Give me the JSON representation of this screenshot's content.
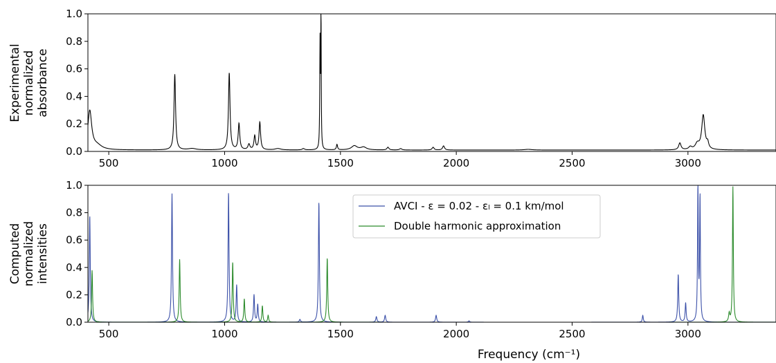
{
  "chart_data": [
    {
      "type": "line",
      "ylabel_lines": [
        "Experimental",
        "normalized",
        "absorbance"
      ],
      "xlim": [
        410,
        3380
      ],
      "ylim": [
        0,
        1.0
      ],
      "xticks": [
        500,
        1000,
        1500,
        2000,
        2500,
        3000
      ],
      "yticks": [
        "0.0",
        "0.2",
        "0.4",
        "0.6",
        "0.8",
        "1.0"
      ],
      "series": [
        {
          "color": "#000000",
          "baseline": 0.01,
          "peaks": [
            [
              418,
              0.28,
              10
            ],
            [
              450,
              0.03,
              25
            ],
            [
              785,
              0.55,
              4
            ],
            [
              860,
              0.01,
              20
            ],
            [
              1020,
              0.56,
              4
            ],
            [
              1062,
              0.19,
              4
            ],
            [
              1105,
              0.04,
              5
            ],
            [
              1130,
              0.1,
              4
            ],
            [
              1152,
              0.2,
              4
            ],
            [
              1230,
              0.01,
              15
            ],
            [
              1340,
              0.01,
              6
            ],
            [
              1412,
              0.77,
              1.5
            ],
            [
              1416,
              0.99,
              1.2
            ],
            [
              1485,
              0.04,
              3
            ],
            [
              1560,
              0.03,
              15
            ],
            [
              1600,
              0.02,
              15
            ],
            [
              1705,
              0.02,
              5
            ],
            [
              1760,
              0.01,
              6
            ],
            [
              1900,
              0.02,
              5
            ],
            [
              1945,
              0.03,
              5
            ],
            [
              2310,
              0.005,
              20
            ],
            [
              2965,
              0.05,
              6
            ],
            [
              3010,
              0.02,
              8
            ],
            [
              3040,
              0.04,
              10
            ],
            [
              3066,
              0.25,
              8
            ],
            [
              3085,
              0.04,
              5
            ]
          ]
        }
      ]
    },
    {
      "type": "line",
      "xlabel": "Frequency (cm⁻¹)",
      "ylabel_lines": [
        "Computed",
        "normalized",
        "intensities"
      ],
      "xlim": [
        410,
        3380
      ],
      "ylim": [
        0,
        1.0
      ],
      "xticks": [
        500,
        1000,
        1500,
        2000,
        2500,
        3000
      ],
      "yticks": [
        "0.0",
        "0.2",
        "0.4",
        "0.6",
        "0.8",
        "1.0"
      ],
      "legend": {
        "placement": "top-center",
        "items": [
          {
            "label": "AVCI - ε = 0.02 - εₗ = 0.1 km/mol",
            "color": "#3a4fa8"
          },
          {
            "label": "Double harmonic approximation",
            "color": "#2a8a2a"
          }
        ]
      },
      "series": [
        {
          "color": "#3a4fa8",
          "baseline": 0,
          "peaks": [
            [
              418,
              0.78,
              2.5
            ],
            [
              773,
              0.94,
              2.5
            ],
            [
              1017,
              0.95,
              2.5
            ],
            [
              1052,
              0.27,
              2.5
            ],
            [
              1127,
              0.2,
              2.5
            ],
            [
              1143,
              0.13,
              2.5
            ],
            [
              1325,
              0.02,
              3
            ],
            [
              1407,
              0.88,
              2.5
            ],
            [
              1655,
              0.04,
              3
            ],
            [
              1693,
              0.05,
              3
            ],
            [
              1913,
              0.05,
              3
            ],
            [
              2055,
              0.01,
              3
            ],
            [
              2805,
              0.05,
              2.5
            ],
            [
              2958,
              0.35,
              2.5
            ],
            [
              2990,
              0.14,
              2.5
            ],
            [
              3043,
              0.99,
              2
            ],
            [
              3052,
              0.91,
              2
            ]
          ]
        },
        {
          "color": "#2a8a2a",
          "baseline": 0,
          "peaks": [
            [
              428,
              0.38,
              2.5
            ],
            [
              806,
              0.46,
              2.5
            ],
            [
              1035,
              0.44,
              2.5
            ],
            [
              1085,
              0.17,
              2.5
            ],
            [
              1163,
              0.12,
              2.5
            ],
            [
              1188,
              0.05,
              2.5
            ],
            [
              1443,
              0.47,
              2.5
            ],
            [
              3178,
              0.06,
              3
            ],
            [
              3194,
              0.99,
              2.2
            ]
          ]
        }
      ]
    }
  ]
}
